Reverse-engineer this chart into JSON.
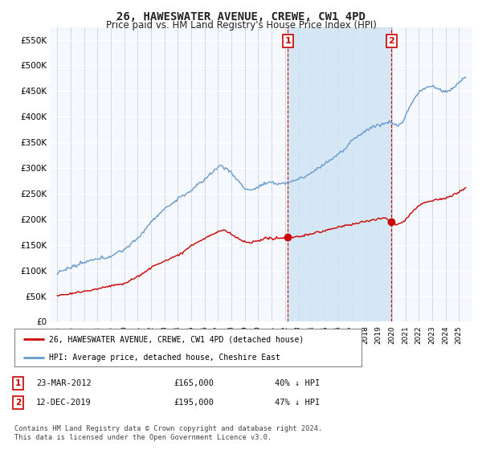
{
  "title": "26, HAWESWATER AVENUE, CREWE, CW1 4PD",
  "subtitle": "Price paid vs. HM Land Registry's House Price Index (HPI)",
  "ylim": [
    0,
    575000
  ],
  "yticks": [
    0,
    50000,
    100000,
    150000,
    200000,
    250000,
    300000,
    350000,
    400000,
    450000,
    500000,
    550000
  ],
  "bg_color": "#f0f4f8",
  "grid_color": "#c8d8e8",
  "red_color": "#cc0000",
  "blue_color": "#6699cc",
  "shade_color": "#d8e8f4",
  "legend_label_red": "26, HAWESWATER AVENUE, CREWE, CW1 4PD (detached house)",
  "legend_label_blue": "HPI: Average price, detached house, Cheshire East",
  "point1_date": "23-MAR-2012",
  "point1_price": "£165,000",
  "point1_hpi": "40% ↓ HPI",
  "point2_date": "12-DEC-2019",
  "point2_price": "£195,000",
  "point2_hpi": "47% ↓ HPI",
  "footer": "Contains HM Land Registry data © Crown copyright and database right 2024.\nThis data is licensed under the Open Government Licence v3.0.",
  "sale1_year": 2012.22,
  "sale1_price": 165000,
  "sale2_year": 2019.95,
  "sale2_price": 195000,
  "xmin": 1995,
  "xmax": 2025.5
}
